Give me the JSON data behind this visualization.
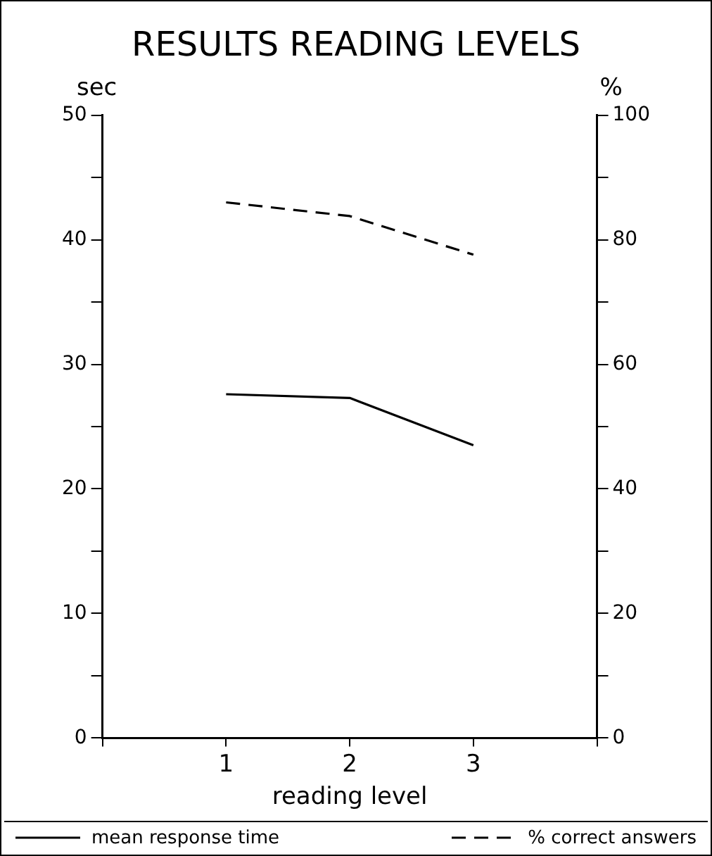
{
  "chart_data": {
    "type": "line",
    "title": "RESULTS READING LEVELS",
    "xlabel": "reading level",
    "ylabel": "sec",
    "y2label": "%",
    "x": [
      1,
      2,
      3
    ],
    "xlim": [
      0,
      4
    ],
    "xticks": [
      {
        "value": 0,
        "label": null
      },
      1,
      2,
      3,
      {
        "value": 4,
        "label": null
      }
    ],
    "ylim": [
      0,
      50
    ],
    "yticks": [
      0,
      {
        "value": 5,
        "label": null
      },
      10,
      {
        "value": 15,
        "label": null
      },
      20,
      {
        "value": 25,
        "label": null
      },
      30,
      {
        "value": 35,
        "label": null
      },
      40,
      {
        "value": 45,
        "label": null
      },
      50
    ],
    "y2lim": [
      0,
      100
    ],
    "y2ticks": [
      0,
      {
        "value": 10,
        "label": null
      },
      20,
      {
        "value": 30,
        "label": null
      },
      40,
      {
        "value": 50,
        "label": null
      },
      60,
      {
        "value": 70,
        "label": null
      },
      80,
      {
        "value": 90,
        "label": null
      },
      100
    ],
    "marker": "none",
    "legend": "bottom",
    "series": [
      {
        "name": "mean response time",
        "color": "#000000",
        "line_style": "solid",
        "values": [
          27.6,
          27.3,
          23.5
        ]
      },
      {
        "name": "% correct answers",
        "color": "#000000",
        "line_style": "dashed",
        "axis": "y2",
        "values": [
          86,
          83.8,
          77.6
        ]
      }
    ]
  }
}
